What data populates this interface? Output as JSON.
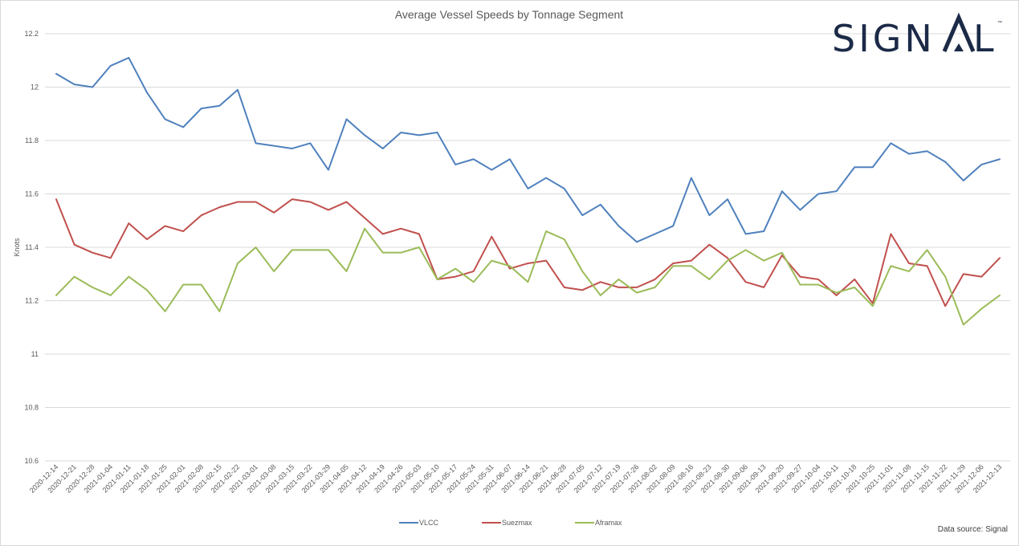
{
  "logo": {
    "text": "SIGN",
    "tail": "L",
    "tm": "™"
  },
  "source_note": "Data source: Signal",
  "chart_data": {
    "type": "line",
    "title": "Average Vessel Speeds by Tonnage Segment",
    "xlabel": "",
    "ylabel": "Knots",
    "ylim": [
      10.6,
      12.2
    ],
    "y_ticks": [
      "10.6",
      "10.8",
      "11",
      "11.2",
      "11.4",
      "11.6",
      "11.8",
      "12",
      "12.2"
    ],
    "y_tick_values": [
      10.6,
      10.8,
      11.0,
      11.2,
      11.4,
      11.6,
      11.8,
      12.0,
      12.2
    ],
    "grid": true,
    "legend_position": "bottom",
    "categories": [
      "2020-12-14",
      "2020-12-21",
      "2020-12-28",
      "2021-01-04",
      "2021-01-11",
      "2021-01-18",
      "2021-01-25",
      "2021-02-01",
      "2021-02-08",
      "2021-02-15",
      "2021-02-22",
      "2021-03-01",
      "2021-03-08",
      "2021-03-15",
      "2021-03-22",
      "2021-03-29",
      "2021-04-05",
      "2021-04-12",
      "2021-04-19",
      "2021-04-26",
      "2021-05-03",
      "2021-05-10",
      "2021-05-17",
      "2021-05-24",
      "2021-05-31",
      "2021-06-07",
      "2021-06-14",
      "2021-06-21",
      "2021-06-28",
      "2021-07-05",
      "2021-07-12",
      "2021-07-19",
      "2021-07-26",
      "2021-08-02",
      "2021-08-09",
      "2021-08-16",
      "2021-08-23",
      "2021-08-30",
      "2021-09-06",
      "2021-09-13",
      "2021-09-20",
      "2021-09-27",
      "2021-10-04",
      "2021-10-11",
      "2021-10-18",
      "2021-10-25",
      "2021-11-01",
      "2021-11-08",
      "2021-11-15",
      "2021-11-22",
      "2021-11-29",
      "2021-12-06",
      "2021-12-13"
    ],
    "series": [
      {
        "name": "VLCC",
        "color": "#4f81bd",
        "values": [
          12.05,
          12.01,
          12.0,
          12.08,
          12.11,
          11.98,
          11.88,
          11.85,
          11.92,
          11.93,
          11.99,
          11.79,
          11.78,
          11.77,
          11.79,
          11.69,
          11.88,
          11.82,
          11.77,
          11.83,
          11.82,
          11.83,
          11.71,
          11.73,
          11.69,
          11.73,
          11.62,
          11.66,
          11.62,
          11.52,
          11.56,
          11.48,
          11.42,
          11.45,
          11.48,
          11.66,
          11.52,
          11.58,
          11.45,
          11.46,
          11.61,
          11.54,
          11.6,
          11.61,
          11.7,
          11.7,
          11.79,
          11.75,
          11.76,
          11.72,
          11.65,
          11.71,
          11.73
        ]
      },
      {
        "name": "Suezmax",
        "color": "#c0504d",
        "values": [
          11.58,
          11.41,
          11.38,
          11.36,
          11.49,
          11.43,
          11.48,
          11.46,
          11.52,
          11.55,
          11.57,
          11.57,
          11.53,
          11.58,
          11.57,
          11.54,
          11.57,
          11.51,
          11.45,
          11.47,
          11.45,
          11.28,
          11.29,
          11.31,
          11.44,
          11.32,
          11.34,
          11.35,
          11.25,
          11.24,
          11.27,
          11.25,
          11.25,
          11.28,
          11.34,
          11.35,
          11.41,
          11.36,
          11.27,
          11.25,
          11.37,
          11.29,
          11.28,
          11.22,
          11.28,
          11.19,
          11.45,
          11.34,
          11.33,
          11.18,
          11.3,
          11.29,
          11.36
        ]
      },
      {
        "name": "Aframax",
        "color": "#9bbb59",
        "values": [
          11.22,
          11.29,
          11.25,
          11.22,
          11.29,
          11.24,
          11.16,
          11.26,
          11.26,
          11.16,
          11.34,
          11.4,
          11.31,
          11.39,
          11.39,
          11.39,
          11.31,
          11.47,
          11.38,
          11.38,
          11.4,
          11.28,
          11.32,
          11.27,
          11.35,
          11.33,
          11.27,
          11.46,
          11.43,
          11.31,
          11.22,
          11.28,
          11.23,
          11.25,
          11.33,
          11.33,
          11.28,
          11.35,
          11.39,
          11.35,
          11.38,
          11.26,
          11.26,
          11.23,
          11.25,
          11.18,
          11.33,
          11.31,
          11.39,
          11.29,
          11.11,
          11.17,
          11.22
        ]
      }
    ]
  }
}
